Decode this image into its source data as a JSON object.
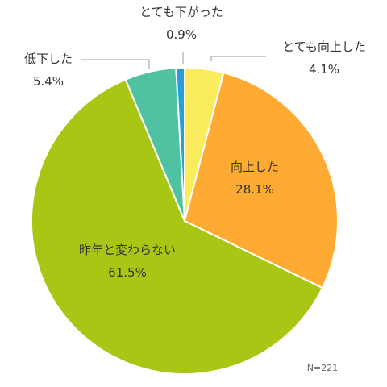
{
  "chart_data": {
    "type": "pie",
    "slices": [
      {
        "label": "とても向上した",
        "value": 4.1,
        "display": "4.1%",
        "color": "#FBEC5D"
      },
      {
        "label": "向上した",
        "value": 28.1,
        "display": "28.1%",
        "color": "#FFAA33"
      },
      {
        "label": "昨年と変わらない",
        "value": 61.5,
        "display": "61.5%",
        "color": "#A8C614"
      },
      {
        "label": "低下した",
        "value": 5.4,
        "display": "5.4%",
        "color": "#4FC3A1"
      },
      {
        "label": "とても下がった",
        "value": 0.9,
        "display": "0.9%",
        "color": "#2A9FD6"
      }
    ],
    "note": "N=221"
  }
}
